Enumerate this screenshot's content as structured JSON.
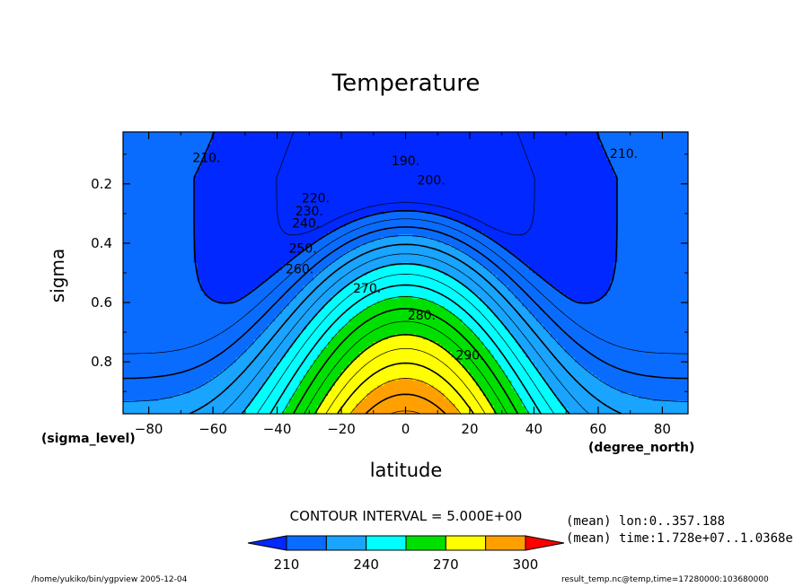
{
  "chart_data": {
    "type": "contour",
    "title": "Temperature",
    "xlabel": "latitude",
    "ylabel": "sigma",
    "x_unit": "(degree_north)",
    "y_unit": "(sigma_level)",
    "xlim": [
      -88,
      88
    ],
    "ylim": [
      0.025,
      0.975
    ],
    "y_inverted": true,
    "x_ticks": [
      "−80",
      "−60",
      "−40",
      "−20",
      "0",
      "20",
      "40",
      "60",
      "80"
    ],
    "x_tick_values": [
      -80,
      -60,
      -40,
      -20,
      0,
      20,
      40,
      60,
      80
    ],
    "y_ticks": [
      "0.2",
      "0.4",
      "0.6",
      "0.8"
    ],
    "y_tick_values": [
      0.2,
      0.4,
      0.6,
      0.8
    ],
    "contour_interval": "CONTOUR INTERVAL = 5.000E+00",
    "contour_levels": [
      190,
      195,
      200,
      205,
      210,
      215,
      220,
      225,
      230,
      235,
      240,
      245,
      250,
      255,
      260,
      265,
      270,
      275,
      280,
      285,
      290,
      295,
      300
    ],
    "contour_labels": [
      "190.",
      "200.",
      "210.",
      "210.",
      "220.",
      "230.",
      "240.",
      "250.",
      "260.",
      "270.",
      "280.",
      "290."
    ],
    "colorbar": {
      "ticks": [
        "210",
        "240",
        "270",
        "300"
      ],
      "tick_values": [
        210,
        240,
        270,
        300
      ],
      "colors": [
        "#0028ff",
        "#0a6cff",
        "#18a4ff",
        "#00ffff",
        "#00e000",
        "#ffff00",
        "#ffa000",
        "#ff0000"
      ]
    },
    "annotations": [
      "(mean) lon:0..357.188",
      "(mean) time:1.728e+07..1.0368e"
    ]
  },
  "footer": {
    "left": "/home/yukiko/bin/ygpview  2005-12-04",
    "right": "result_temp.nc@temp,time=17280000:103680000"
  }
}
